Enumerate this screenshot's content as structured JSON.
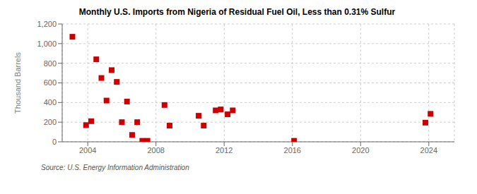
{
  "chart_data": {
    "type": "scatter",
    "title": "Monthly U.S. Imports from Nigeria of Residual Fuel Oil, Less than 0.31% Sulfur",
    "y_label": "Thousand Barrels",
    "annotations": [
      "Source: U.S. Energy Information Administration"
    ],
    "x": [
      2003.1,
      2003.9,
      2004.2,
      2004.5,
      2004.8,
      2005.1,
      2005.4,
      2005.7,
      2006.0,
      2006.3,
      2006.6,
      2006.9,
      2007.2,
      2007.5,
      2008.5,
      2008.8,
      2010.5,
      2010.8,
      2011.5,
      2011.8,
      2012.2,
      2012.5,
      2016.1,
      2023.8,
      2024.1
    ],
    "values": [
      1070,
      170,
      210,
      840,
      650,
      420,
      730,
      610,
      200,
      410,
      70,
      200,
      10,
      10,
      375,
      165,
      265,
      165,
      320,
      330,
      280,
      320,
      10,
      195,
      285
    ],
    "color": "#cc0000",
    "marker": "square",
    "xlim": [
      2002.5,
      2025.5
    ],
    "ylim": [
      0,
      1200
    ],
    "xticks": [
      2004,
      2008,
      2012,
      2016,
      2020,
      2024
    ],
    "yticks": [
      0,
      200,
      400,
      600,
      800,
      {
        "value": 1000,
        "label": "1,000"
      },
      {
        "value": 1200,
        "label": "1,200"
      }
    ],
    "grid": true
  }
}
